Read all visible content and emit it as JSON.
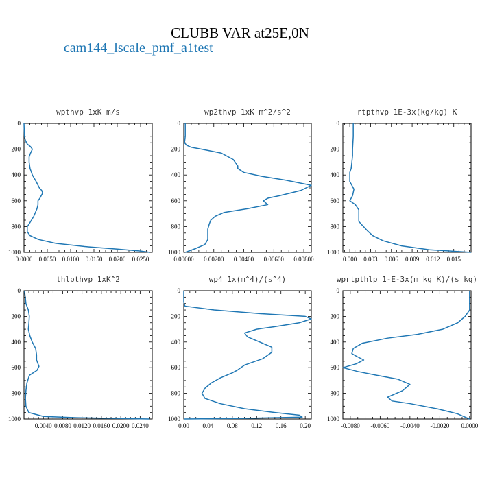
{
  "title": "CLUBB VAR at25E,0N",
  "legend": {
    "entries": [
      {
        "label": "— cam144_lscale_pmf_a1test",
        "color": "#1f77b4"
      }
    ]
  },
  "series_color": "#1f77b4",
  "chart_data": [
    {
      "type": "line",
      "title": "wpthvp  1xK m/s",
      "xlim": [
        0,
        0.0275
      ],
      "ylim": [
        1000,
        0
      ],
      "xticks": [
        "0.0000",
        "0.0050",
        "0.0100",
        "0.0150",
        "0.0200",
        "0.0250"
      ],
      "xtick_values": [
        0,
        0.005,
        0.01,
        0.015,
        0.02,
        0.025
      ],
      "yticks": [
        "0",
        "200",
        "400",
        "600",
        "800",
        "1000"
      ],
      "series": [
        {
          "x": [
            0,
            0.0001,
            0.0003,
            0.0007,
            0.0014,
            0.0018,
            0.0014,
            0.0011,
            0.0011,
            0.0013,
            0.0018,
            0.0026,
            0.0033,
            0.0038,
            0.004,
            0.0034,
            0.003,
            0.003,
            0.0028,
            0.0021,
            0.0011,
            0.0007,
            0.0007,
            0.0013,
            0.0031,
            0.0068,
            0.013,
            0.02,
            0.025,
            0.027
          ],
          "y": [
            0,
            100,
            130,
            160,
            180,
            200,
            230,
            260,
            300,
            350,
            400,
            450,
            500,
            520,
            540,
            580,
            600,
            630,
            660,
            720,
            780,
            800,
            840,
            870,
            900,
            930,
            955,
            975,
            990,
            1000
          ]
        }
      ]
    },
    {
      "type": "line",
      "title": "wp2thvp  1xK m^2/s^2",
      "xlim": [
        0,
        0.0085
      ],
      "ylim": [
        1000,
        0
      ],
      "xticks": [
        "0.00000",
        "0.00200",
        "0.00400",
        "0.00600",
        "0.00800"
      ],
      "xtick_values": [
        0,
        0.002,
        0.004,
        0.006,
        0.008
      ],
      "yticks": [
        "0",
        "200",
        "400",
        "600",
        "800",
        "1000"
      ],
      "series": [
        {
          "x": [
            0.0001,
            0.0001,
            5e-05,
            0.0002,
            0.0005,
            0.0012,
            0.0025,
            0.0033,
            0.0036,
            0.0036,
            0.004,
            0.0052,
            0.0068,
            0.0085,
            0.0078,
            0.0064,
            0.0056,
            0.0053,
            0.0055,
            0.0056,
            0.0043,
            0.0027,
            0.0021,
            0.0018,
            0.0017,
            0.0016,
            0.0016,
            0.0016,
            0.0016,
            0.0014,
            0.0008,
            0.0001
          ],
          "y": [
            0,
            100,
            150,
            170,
            185,
            200,
            230,
            280,
            330,
            350,
            380,
            410,
            440,
            480,
            520,
            560,
            580,
            600,
            620,
            630,
            660,
            690,
            720,
            750,
            780,
            820,
            840,
            870,
            900,
            940,
            970,
            1000
          ]
        }
      ]
    },
    {
      "type": "line",
      "title": "rtpthvp  1E-3x(kg/kg) K",
      "xlim": [
        -0.001,
        0.0175
      ],
      "ylim": [
        1000,
        0
      ],
      "xticks": [
        "0.000",
        "0.003",
        "0.006",
        "0.009",
        "0.012",
        "0.015"
      ],
      "xtick_values": [
        0,
        0.003,
        0.006,
        0.009,
        0.012,
        0.015
      ],
      "yticks": [
        "0",
        "200",
        "400",
        "600",
        "800",
        "1000"
      ],
      "series": [
        {
          "x": [
            0.0005,
            0.0005,
            0.0004,
            0.0004,
            0.0003,
            0.0002,
            0,
            0,
            0.0006,
            0.0004,
            0,
            0.0008,
            0.0013,
            0.0013,
            0.0013,
            0.0018,
            0.0025,
            0.0033,
            0.0048,
            0.0075,
            0.0115,
            0.0175
          ],
          "y": [
            0,
            100,
            200,
            250,
            300,
            350,
            380,
            450,
            510,
            560,
            600,
            630,
            670,
            720,
            760,
            790,
            830,
            870,
            910,
            950,
            980,
            1000
          ]
        }
      ]
    },
    {
      "type": "line",
      "title": "thlpthvp  1xK^2",
      "xlim": [
        0,
        0.0265
      ],
      "ylim": [
        1000,
        0
      ],
      "xticks": [
        "0.0040",
        "0.0080",
        "0.0120",
        "0.0160",
        "0.0200",
        "0.0240"
      ],
      "xtick_values": [
        0.004,
        0.008,
        0.012,
        0.016,
        0.02,
        0.024
      ],
      "yticks": [
        "0",
        "200",
        "400",
        "600",
        "800",
        "1000"
      ],
      "series": [
        {
          "x": [
            0.0001,
            0.0003,
            0.0004,
            0.0009,
            0.0011,
            0.001,
            0.0009,
            0.0012,
            0.0017,
            0.0024,
            0.0026,
            0.0026,
            0.0031,
            0.0027,
            0.0011,
            0.0006,
            0.0004,
            0.0003,
            0.0004,
            0.001,
            0.004,
            0.011,
            0.019,
            0.026
          ],
          "y": [
            0,
            60,
            100,
            150,
            200,
            260,
            300,
            350,
            400,
            450,
            500,
            540,
            590,
            620,
            660,
            720,
            780,
            840,
            900,
            950,
            980,
            990,
            995,
            1000
          ]
        }
      ]
    },
    {
      "type": "line",
      "title": "wp4  1x(m^4)/(s^4)",
      "xlim": [
        0,
        0.21
      ],
      "ylim": [
        1000,
        0
      ],
      "xticks": [
        "0.00",
        "0.04",
        "0.08",
        "0.12",
        "0.16",
        "0.20"
      ],
      "xtick_values": [
        0,
        0.04,
        0.08,
        0.12,
        0.16,
        0.2
      ],
      "yticks": [
        "0",
        "200",
        "400",
        "600",
        "800",
        "1000"
      ],
      "series": [
        {
          "x": [
            0,
            0,
            0.002,
            0.05,
            0.13,
            0.2,
            0.21,
            0.19,
            0.15,
            0.12,
            0.1,
            0.105,
            0.125,
            0.145,
            0.145,
            0.13,
            0.1,
            0.088,
            0.08,
            0.06,
            0.045,
            0.035,
            0.03,
            0.035,
            0.06,
            0.1,
            0.15,
            0.19,
            0.195,
            0.1,
            0
          ],
          "y": [
            0,
            90,
            120,
            150,
            180,
            200,
            220,
            250,
            280,
            300,
            330,
            360,
            400,
            440,
            480,
            530,
            580,
            620,
            640,
            680,
            720,
            760,
            800,
            840,
            880,
            920,
            950,
            970,
            985,
            995,
            1000
          ]
        }
      ]
    },
    {
      "type": "line",
      "title": "wprtpthlp  1-E-3x(m kg K)/(s kg)",
      "xlim": [
        -0.0085,
        0.0001
      ],
      "ylim": [
        1000,
        0
      ],
      "xticks": [
        "-0.0080",
        "-0.0060",
        "-0.0040",
        "-0.0020",
        "0.0000"
      ],
      "xtick_values": [
        -0.008,
        -0.006,
        -0.004,
        -0.002,
        0
      ],
      "yticks": [
        "0",
        "200",
        "400",
        "600",
        "800",
        "1000"
      ],
      "series": [
        {
          "x": [
            0,
            0,
            -0.0003,
            -0.0008,
            -0.0018,
            -0.0035,
            -0.0055,
            -0.0072,
            -0.0078,
            -0.0079,
            -0.0076,
            -0.0071,
            -0.0076,
            -0.0085,
            -0.0075,
            -0.0062,
            -0.0048,
            -0.004,
            -0.0045,
            -0.0055,
            -0.0052,
            -0.004,
            -0.0022,
            -0.0008,
            -0.0002,
            0
          ],
          "y": [
            0,
            150,
            200,
            250,
            300,
            340,
            370,
            410,
            450,
            490,
            510,
            540,
            570,
            600,
            630,
            660,
            690,
            730,
            780,
            830,
            860,
            880,
            920,
            960,
            990,
            1000
          ]
        }
      ]
    }
  ]
}
